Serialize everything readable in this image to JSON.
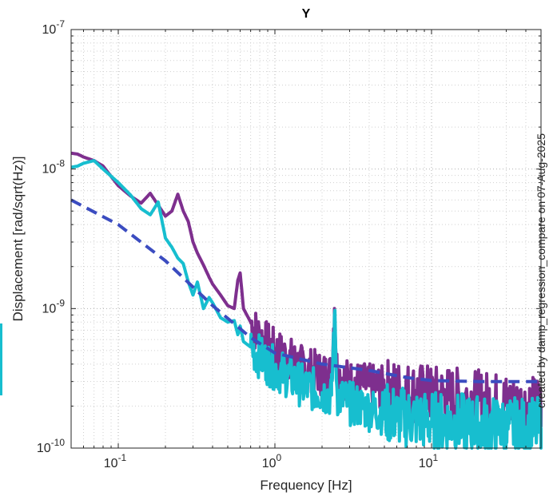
{
  "chart_data": {
    "type": "line",
    "title": "Y",
    "xlabel": "Frequency [Hz]",
    "ylabel": "Displacement [rad/sqrt(Hz)]",
    "x_scale": "log",
    "y_scale": "log",
    "xlim": [
      0.05,
      50
    ],
    "ylim": [
      1e-10,
      1e-07
    ],
    "grid": true,
    "x_ticks": [
      {
        "value": 0.1,
        "base": "10",
        "exp": "-1"
      },
      {
        "value": 1,
        "base": "10",
        "exp": "0"
      },
      {
        "value": 10,
        "base": "10",
        "exp": "1"
      }
    ],
    "y_ticks": [
      {
        "value": 1e-10,
        "base": "10",
        "exp": "-10"
      },
      {
        "value": 1e-09,
        "base": "10",
        "exp": "-9"
      },
      {
        "value": 1e-08,
        "base": "10",
        "exp": "-8"
      },
      {
        "value": 1e-07,
        "base": "10",
        "exp": "-7"
      }
    ],
    "annotation": "created by damp_regression_compare on 07-Aug-2025",
    "series": [
      {
        "color": "#7e2f8e",
        "style": "solid",
        "x": [
          0.05,
          0.055,
          0.06,
          0.07,
          0.08,
          0.1,
          0.12,
          0.14,
          0.16,
          0.18,
          0.2,
          0.22,
          0.24,
          0.26,
          0.28,
          0.3,
          0.32,
          0.35,
          0.38,
          0.4,
          0.45,
          0.5,
          0.55,
          0.58,
          0.6,
          0.63,
          0.7,
          0.8,
          1.0,
          1.2,
          1.5,
          2.0,
          2.3,
          2.4,
          2.5,
          2.6,
          3.0,
          4.0,
          6.0,
          10,
          15,
          20,
          30,
          40,
          50
        ],
        "y": [
          1.3e-08,
          1.28e-08,
          1.22e-08,
          1.15e-08,
          1.05e-08,
          7.6e-09,
          6.4e-09,
          5.7e-09,
          6.7e-09,
          5.5e-09,
          4.6e-09,
          5e-09,
          6.6e-09,
          5e-09,
          4.2e-09,
          3e-09,
          2.5e-09,
          2.05e-09,
          1.68e-09,
          1.5e-09,
          1.25e-09,
          1.05e-09,
          1e-09,
          1.6e-09,
          1.8e-09,
          1e-09,
          8e-10,
          6.3e-10,
          5e-10,
          4.5e-10,
          3.8e-10,
          3.4e-10,
          3.4e-10,
          1e-09,
          3.4e-10,
          3.3e-10,
          3e-10,
          2.8e-10,
          2.6e-10,
          2.4e-10,
          2.3e-10,
          2.2e-10,
          2.1e-10,
          2e-10,
          2e-10
        ]
      },
      {
        "color": "#17becf",
        "style": "solid",
        "x": [
          0.05,
          0.055,
          0.06,
          0.07,
          0.08,
          0.1,
          0.12,
          0.14,
          0.16,
          0.18,
          0.2,
          0.22,
          0.24,
          0.26,
          0.28,
          0.3,
          0.32,
          0.35,
          0.38,
          0.4,
          0.45,
          0.5,
          0.55,
          0.58,
          0.6,
          0.63,
          0.7,
          0.8,
          1.0,
          1.2,
          1.5,
          2.0,
          2.3,
          2.4,
          2.5,
          2.6,
          3.0,
          4.0,
          6.0,
          10,
          15,
          20,
          30,
          40,
          50
        ],
        "y": [
          1.03e-08,
          1.05e-08,
          1.1e-08,
          1.15e-08,
          1e-08,
          8e-09,
          6.5e-09,
          5.2e-09,
          4.7e-09,
          5.8e-09,
          3.2e-09,
          2.75e-09,
          2.3e-09,
          2.1e-09,
          1.55e-09,
          1.25e-09,
          1.55e-09,
          1e-09,
          1.2e-09,
          1.1e-09,
          8.6e-10,
          8e-10,
          8.2e-10,
          6.5e-10,
          7.5e-10,
          5.8e-10,
          5.3e-10,
          4.5e-10,
          3.7e-10,
          3.3e-10,
          2.8e-10,
          2.5e-10,
          2.4e-10,
          9e-10,
          2.4e-10,
          2.3e-10,
          2.1e-10,
          1.9e-10,
          1.7e-10,
          1.55e-10,
          1.5e-10,
          1.45e-10,
          1.4e-10,
          1.4e-10,
          1.4e-10
        ]
      },
      {
        "color": "#3b4cc0",
        "style": "dashed",
        "x": [
          0.05,
          0.1,
          0.2,
          0.4,
          0.7,
          1.0,
          2.0,
          4.0,
          7.0,
          10,
          20,
          30,
          50
        ],
        "y": [
          6e-09,
          4e-09,
          2.2e-09,
          1.05e-09,
          6.2e-10,
          4.8e-10,
          4e-10,
          3.6e-10,
          3.2e-10,
          3.05e-10,
          3e-10,
          3e-10,
          3e-10
        ]
      }
    ]
  }
}
